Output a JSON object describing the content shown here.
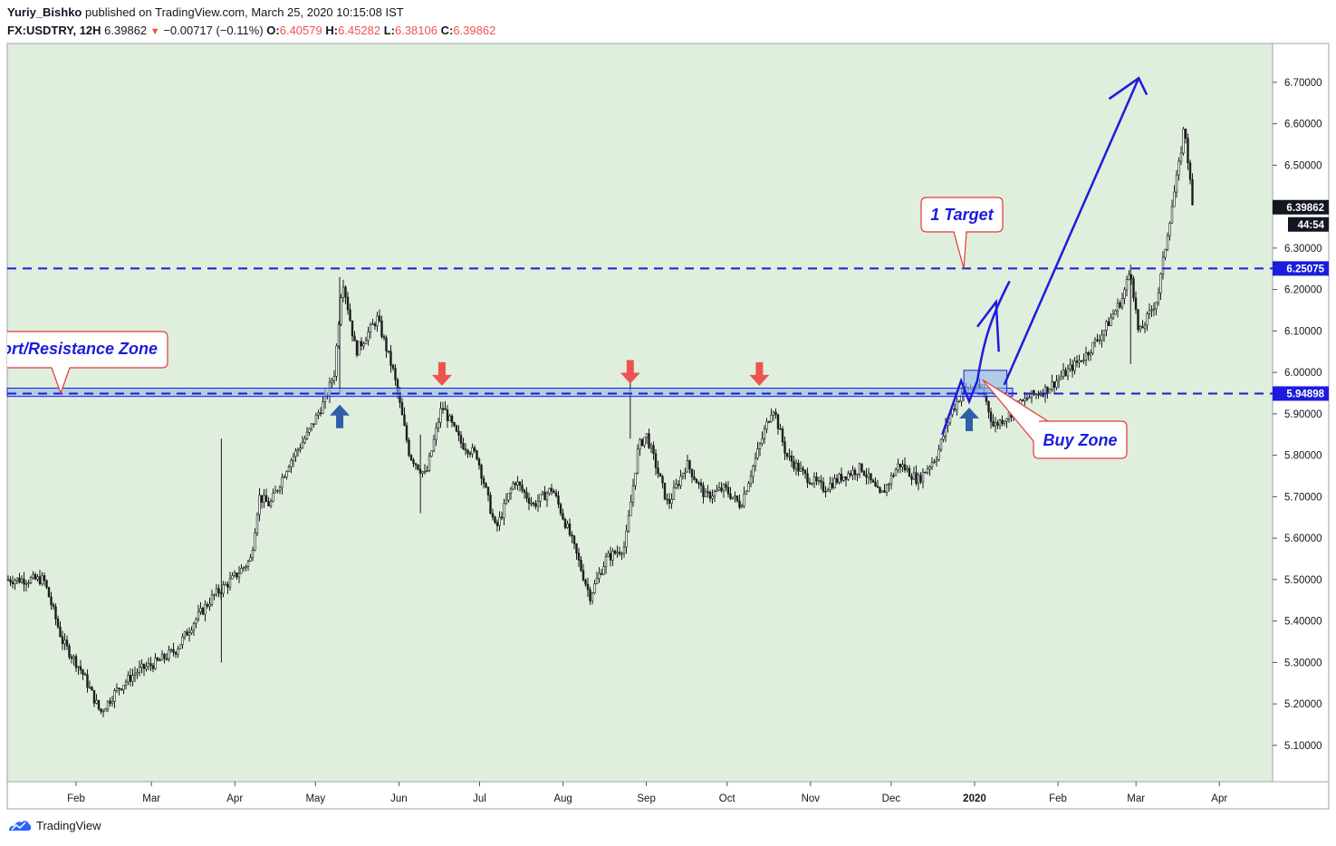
{
  "header": {
    "author": "Yuriy_Bishko",
    "published": "published on TradingView.com, March 25, 2020 10:15:08 IST",
    "symbol": "FX:USDTRY, 12H",
    "last": "6.39862",
    "change": "−0.00717 (−0.11%)",
    "o_label": "O:",
    "o": "6.40579",
    "h_label": "H:",
    "h": "6.45282",
    "l_label": "L:",
    "l": "6.38106",
    "c_label": "C:",
    "c": "6.39862"
  },
  "footer": {
    "brand": "TradingView"
  },
  "colors": {
    "plot_bg": "#dfeedd",
    "candle": "#1a1a1a",
    "level_line": "#1c1cdd",
    "zone_fill": "#8fb6ea",
    "arrow_up": "#2e5fa8",
    "arrow_down": "#ef5350",
    "callout_border": "#e53935",
    "drawing": "#1c1cdd"
  },
  "chart_data": {
    "type": "candlestick",
    "symbol": "FX:USDTRY",
    "interval": "12H",
    "ylim": [
      5.03,
      6.79
    ],
    "y_ticks": [
      "6.70000",
      "6.60000",
      "6.50000",
      "6.40000",
      "6.30000",
      "6.20000",
      "6.10000",
      "6.00000",
      "5.90000",
      "5.80000",
      "5.70000",
      "5.60000",
      "5.50000",
      "5.40000",
      "5.30000",
      "5.20000",
      "5.10000"
    ],
    "x_ticks": [
      "Feb",
      "Mar",
      "Apr",
      "May",
      "Jun",
      "Jul",
      "Aug",
      "Sep",
      "Oct",
      "Nov",
      "Dec",
      "2020",
      "Feb",
      "Mar",
      "Apr"
    ],
    "price_path": [
      [
        "2019-01-20",
        5.5
      ],
      [
        "2019-01-27",
        5.35
      ],
      [
        "2019-02-03",
        5.28
      ],
      [
        "2019-02-10",
        5.18
      ],
      [
        "2019-02-17",
        5.24
      ],
      [
        "2019-02-24",
        5.28
      ],
      [
        "2019-03-03",
        5.3
      ],
      [
        "2019-03-10",
        5.33
      ],
      [
        "2019-03-17",
        5.4
      ],
      [
        "2019-03-24",
        5.46
      ],
      [
        "2019-03-31",
        5.5
      ],
      [
        "2019-04-07",
        5.55
      ],
      [
        "2019-04-10",
        5.7
      ],
      [
        "2019-04-14",
        5.68
      ],
      [
        "2019-04-21",
        5.78
      ],
      [
        "2019-04-28",
        5.85
      ],
      [
        "2019-05-05",
        5.94
      ],
      [
        "2019-05-08",
        6.0
      ],
      [
        "2019-05-11",
        6.23
      ],
      [
        "2019-05-16",
        6.05
      ],
      [
        "2019-05-24",
        6.13
      ],
      [
        "2019-05-30",
        6.0
      ],
      [
        "2019-06-05",
        5.8
      ],
      [
        "2019-06-11",
        5.75
      ],
      [
        "2019-06-17",
        5.92
      ],
      [
        "2019-06-24",
        5.83
      ],
      [
        "2019-06-30",
        5.8
      ],
      [
        "2019-07-07",
        5.62
      ],
      [
        "2019-07-14",
        5.74
      ],
      [
        "2019-07-21",
        5.68
      ],
      [
        "2019-07-28",
        5.72
      ],
      [
        "2019-08-04",
        5.6
      ],
      [
        "2019-08-11",
        5.46
      ],
      [
        "2019-08-17",
        5.55
      ],
      [
        "2019-08-24",
        5.58
      ],
      [
        "2019-08-29",
        5.82
      ],
      [
        "2019-09-01",
        5.85
      ],
      [
        "2019-09-09",
        5.68
      ],
      [
        "2019-09-16",
        5.78
      ],
      [
        "2019-09-23",
        5.7
      ],
      [
        "2019-09-30",
        5.72
      ],
      [
        "2019-10-06",
        5.68
      ],
      [
        "2019-10-13",
        5.82
      ],
      [
        "2019-10-18",
        5.92
      ],
      [
        "2019-10-23",
        5.8
      ],
      [
        "2019-10-30",
        5.75
      ],
      [
        "2019-11-06",
        5.72
      ],
      [
        "2019-11-13",
        5.75
      ],
      [
        "2019-11-20",
        5.77
      ],
      [
        "2019-11-27",
        5.7
      ],
      [
        "2019-12-04",
        5.78
      ],
      [
        "2019-12-11",
        5.74
      ],
      [
        "2019-12-18",
        5.8
      ],
      [
        "2019-12-23",
        5.9
      ],
      [
        "2019-12-28",
        5.96
      ],
      [
        "2020-01-04",
        5.96
      ],
      [
        "2020-01-08",
        5.87
      ],
      [
        "2020-01-14",
        5.9
      ],
      [
        "2020-01-21",
        5.94
      ],
      [
        "2020-01-28",
        5.96
      ],
      [
        "2020-02-04",
        6.0
      ],
      [
        "2020-02-11",
        6.04
      ],
      [
        "2020-02-18",
        6.1
      ],
      [
        "2020-02-25",
        6.18
      ],
      [
        "2020-02-28",
        6.25
      ],
      [
        "2020-03-02",
        6.09
      ],
      [
        "2020-03-09",
        6.18
      ],
      [
        "2020-03-13",
        6.35
      ],
      [
        "2020-03-17",
        6.5
      ],
      [
        "2020-03-19",
        6.6
      ],
      [
        "2020-03-22",
        6.4
      ]
    ],
    "levels": [
      {
        "value": 6.25075,
        "label": "6.25075"
      },
      {
        "value": 5.94898,
        "label": "5.94898"
      }
    ],
    "last_price_label": "6.39862",
    "countdown": "44:54",
    "annotations": {
      "sr_zone": "ort/Resistance Zone",
      "target": "1 Target",
      "buy_zone": "Buy Zone"
    }
  }
}
